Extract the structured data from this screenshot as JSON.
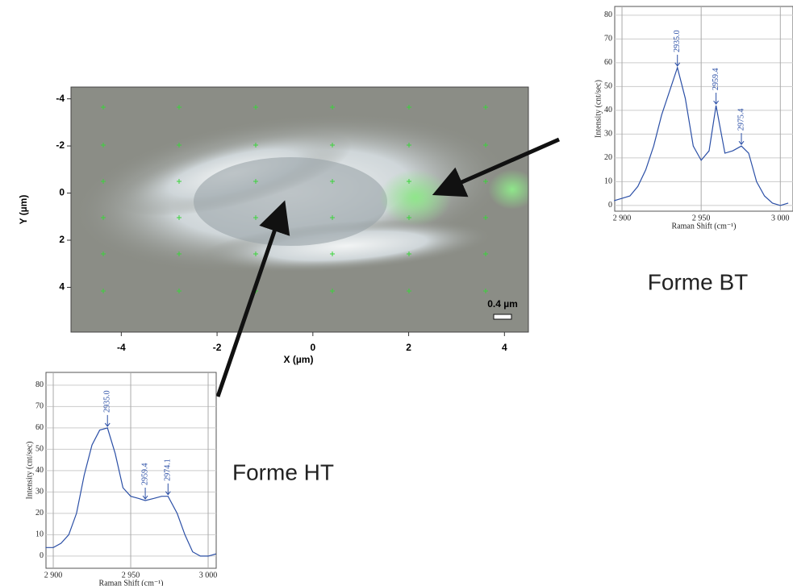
{
  "chart_data": [
    {
      "type": "image",
      "xlabel": "X (µm)",
      "ylabel": "Y (µm)",
      "xlim": [
        -5.05,
        4.5
      ],
      "xticks": [
        -4,
        -2,
        0,
        2,
        4
      ],
      "ylim": [
        5.9,
        -4.5
      ],
      "yticks": [
        -4,
        -2,
        0,
        2,
        4
      ],
      "scale_bar": "0.4 µm",
      "caption": "Forme HT"
    },
    {
      "type": "line",
      "title": "Forme BT",
      "xlabel": "Raman Shift (cm⁻¹)",
      "ylabel": "Intensity (cnt/sec)",
      "color": "#2b4fa6",
      "grid": true,
      "xlim": [
        2895.4,
        3008
      ],
      "xticks": [
        {
          "value": 2900,
          "label": "2 900"
        },
        {
          "value": 2950,
          "label": "2 950"
        },
        {
          "value": 3000,
          "label": "3 000"
        }
      ],
      "ylim": [
        -2.4,
        83.7
      ],
      "yticks": [
        0,
        10,
        20,
        30,
        40,
        50,
        60,
        70,
        80
      ],
      "x": [
        2895,
        2900,
        2905,
        2910,
        2915,
        2920,
        2925,
        2930,
        2935,
        2940,
        2945,
        2950,
        2955,
        2959.4,
        2965,
        2970,
        2975.4,
        2980,
        2985,
        2990,
        2995,
        3000,
        3005
      ],
      "values": [
        2,
        3,
        4,
        8,
        15,
        25,
        38,
        48,
        58,
        45,
        25,
        19,
        23,
        42,
        22,
        23,
        25,
        22,
        10,
        4,
        1,
        0,
        1
      ],
      "annotations": [
        {
          "text": "2935.0",
          "x": 2935,
          "y": 58
        },
        {
          "text": "2959.4",
          "x": 2959.4,
          "y": 42
        },
        {
          "text": "2975.4",
          "x": 2975.4,
          "y": 25
        }
      ]
    },
    {
      "type": "line",
      "xlabel": "Raman Shift (cm⁻¹)",
      "ylabel": "Intensity (cnt/sec)",
      "color": "#2b4fa6",
      "grid": true,
      "xlim": [
        2895.3,
        3005.2
      ],
      "xticks": [
        {
          "value": 2900,
          "label": "2 900"
        },
        {
          "value": 2950,
          "label": "2 950"
        },
        {
          "value": 3000,
          "label": "3 000"
        }
      ],
      "ylim": [
        -5.7,
        86
      ],
      "yticks": [
        0,
        10,
        20,
        30,
        40,
        50,
        60,
        70,
        80
      ],
      "x": [
        2895,
        2900,
        2905,
        2910,
        2915,
        2920,
        2925,
        2930,
        2935,
        2940,
        2945,
        2950,
        2955,
        2959.4,
        2965,
        2970,
        2974.1,
        2980,
        2985,
        2990,
        2995,
        3000,
        3005
      ],
      "values": [
        4,
        4,
        6,
        10,
        20,
        38,
        52,
        59,
        60,
        48,
        32,
        28,
        27,
        26,
        27,
        28,
        28,
        20,
        10,
        2,
        0,
        0,
        1
      ],
      "annotations": [
        {
          "text": "2935.0",
          "x": 2935,
          "y": 60
        },
        {
          "text": "2959.4",
          "x": 2959.4,
          "y": 26
        },
        {
          "text": "2974.1",
          "x": 2974.1,
          "y": 28
        }
      ]
    }
  ]
}
